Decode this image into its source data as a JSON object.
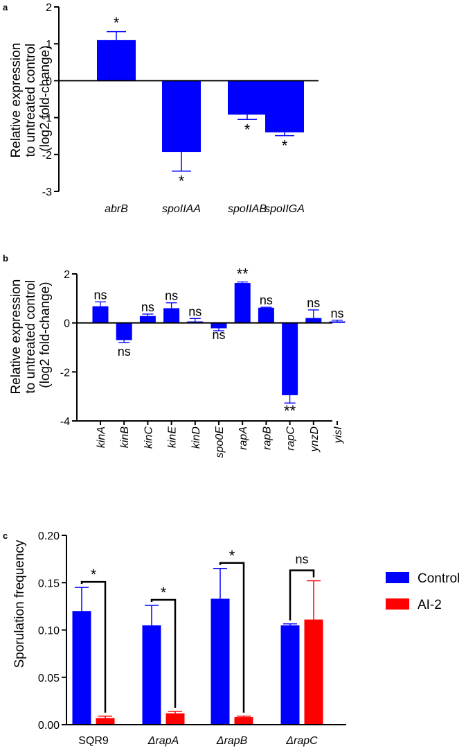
{
  "chart_data": [
    {
      "panel": "a",
      "type": "bar",
      "categories": [
        "abrB",
        "spoIIAA",
        "spoIIAB",
        "spoIIGA"
      ],
      "values": [
        1.1,
        -1.93,
        -0.92,
        -1.4
      ],
      "errors": [
        0.23,
        0.52,
        0.13,
        0.09
      ],
      "significance": [
        "*",
        "*",
        "*",
        "*"
      ],
      "ylabel_lines": [
        "Relative expression",
        "to untreated control",
        "(log2 fold-change)"
      ],
      "ylim": [
        -3,
        2
      ],
      "yticks": [
        "2",
        "1",
        "0",
        "-1",
        "-2",
        "-3"
      ],
      "color": "#0000ff"
    },
    {
      "panel": "b",
      "type": "bar",
      "categories": [
        "kinA",
        "kinB",
        "kinC",
        "kinE",
        "kinD",
        "spo0E",
        "rapA",
        "rapB",
        "rapC",
        "ynzD",
        "yisI"
      ],
      "values": [
        0.68,
        -0.7,
        0.28,
        0.6,
        0.06,
        -0.22,
        1.63,
        0.62,
        -2.95,
        0.2,
        0.06
      ],
      "errors": [
        0.18,
        0.1,
        0.08,
        0.22,
        0.12,
        0.1,
        0.04,
        0.02,
        0.32,
        0.33,
        0.05
      ],
      "significance": [
        "ns",
        "ns",
        "ns",
        "ns",
        "ns",
        "ns",
        "**",
        "ns",
        "**",
        "ns",
        "ns"
      ],
      "ylabel_lines": [
        "Relative expression",
        "to untreated control",
        "(log2 fold-change)"
      ],
      "ylim": [
        -4,
        2
      ],
      "yticks": [
        "2",
        "0",
        "-2",
        "-4"
      ],
      "color": "#0000ff"
    },
    {
      "panel": "c",
      "type": "bar",
      "categories": [
        "SQR9",
        "ΔrapA",
        "ΔrapB",
        "ΔrapC"
      ],
      "series": [
        {
          "name": "Control",
          "values": [
            0.12,
            0.105,
            0.133,
            0.105
          ],
          "errors": [
            0.025,
            0.021,
            0.032,
            0.0015
          ],
          "color": "#0000ff"
        },
        {
          "name": "AI-2",
          "values": [
            0.007,
            0.012,
            0.008,
            0.111
          ],
          "errors": [
            0.002,
            0.002,
            0.001,
            0.041
          ],
          "color": "#ff0000"
        }
      ],
      "significance": [
        "*",
        "*",
        "*",
        "ns"
      ],
      "ylabel": "Sporulation frequency",
      "ylim": [
        0,
        0.2
      ],
      "yticks": [
        "0.20",
        "0.15",
        "0.10",
        "0.05",
        "0.00"
      ],
      "legend_position": "right"
    }
  ]
}
